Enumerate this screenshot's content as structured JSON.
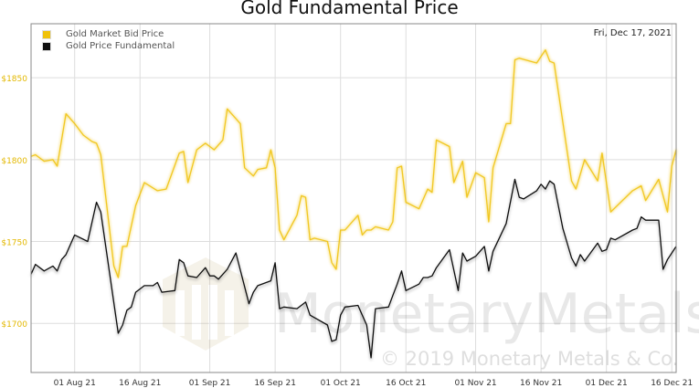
{
  "chart_data": {
    "type": "line",
    "title": "Gold Fundamental Price",
    "date_label": "Fri, Dec 17, 2021",
    "watermark": "MonetaryMetals",
    "copyright": "© 2019 Monetary Metals & Co.",
    "xlim": [
      "2021-07-22",
      "2021-12-17"
    ],
    "ylim": [
      1670,
      1883
    ],
    "grid": true,
    "legend_placement": "top-left",
    "yticks": [
      {
        "value": 1700,
        "label": "$1700"
      },
      {
        "value": 1750,
        "label": "$1750"
      },
      {
        "value": 1800,
        "label": "$1800"
      },
      {
        "value": 1850,
        "label": "$1850"
      }
    ],
    "xticks": [
      {
        "date": "2021-08-01",
        "label": "01 Aug 21"
      },
      {
        "date": "2021-08-16",
        "label": "16 Aug 21"
      },
      {
        "date": "2021-09-01",
        "label": "01 Sep 21"
      },
      {
        "date": "2021-09-16",
        "label": "16 Sep 21"
      },
      {
        "date": "2021-10-01",
        "label": "01 Oct 21"
      },
      {
        "date": "2021-10-16",
        "label": "16 Oct 21"
      },
      {
        "date": "2021-11-01",
        "label": "01 Nov 21"
      },
      {
        "date": "2021-11-16",
        "label": "16 Nov 21"
      },
      {
        "date": "2021-12-01",
        "label": "01 Dec 21"
      },
      {
        "date": "2021-12-16",
        "label": "16 Dec 21"
      }
    ],
    "series": [
      {
        "name": "Gold Market Bid Price",
        "color": "#f0c20a",
        "points": [
          [
            "2021-07-22",
            1802
          ],
          [
            "2021-07-23",
            1803
          ],
          [
            "2021-07-25",
            1799
          ],
          [
            "2021-07-27",
            1800
          ],
          [
            "2021-07-28",
            1796
          ],
          [
            "2021-07-30",
            1828
          ],
          [
            "2021-08-01",
            1822
          ],
          [
            "2021-08-03",
            1815
          ],
          [
            "2021-08-05",
            1811
          ],
          [
            "2021-08-06",
            1810
          ],
          [
            "2021-08-07",
            1803
          ],
          [
            "2021-08-10",
            1735
          ],
          [
            "2021-08-11",
            1728
          ],
          [
            "2021-08-12",
            1747
          ],
          [
            "2021-08-13",
            1747
          ],
          [
            "2021-08-15",
            1772
          ],
          [
            "2021-08-17",
            1786
          ],
          [
            "2021-08-20",
            1781
          ],
          [
            "2021-08-22",
            1782
          ],
          [
            "2021-08-25",
            1804
          ],
          [
            "2021-08-26",
            1805
          ],
          [
            "2021-08-27",
            1786
          ],
          [
            "2021-08-29",
            1806
          ],
          [
            "2021-08-31",
            1810
          ],
          [
            "2021-09-02",
            1806
          ],
          [
            "2021-09-04",
            1812
          ],
          [
            "2021-09-05",
            1831
          ],
          [
            "2021-09-08",
            1822
          ],
          [
            "2021-09-09",
            1795
          ],
          [
            "2021-09-11",
            1790
          ],
          [
            "2021-09-12",
            1794
          ],
          [
            "2021-09-14",
            1795
          ],
          [
            "2021-09-15",
            1806
          ],
          [
            "2021-09-16",
            1795
          ],
          [
            "2021-09-17",
            1757
          ],
          [
            "2021-09-18",
            1751
          ],
          [
            "2021-09-21",
            1766
          ],
          [
            "2021-09-22",
            1778
          ],
          [
            "2021-09-23",
            1777
          ],
          [
            "2021-09-24",
            1751
          ],
          [
            "2021-09-25",
            1752
          ],
          [
            "2021-09-28",
            1750
          ],
          [
            "2021-09-29",
            1737
          ],
          [
            "2021-09-30",
            1733
          ],
          [
            "2021-10-01",
            1757
          ],
          [
            "2021-10-02",
            1757
          ],
          [
            "2021-10-05",
            1766
          ],
          [
            "2021-10-06",
            1754
          ],
          [
            "2021-10-07",
            1757
          ],
          [
            "2021-10-08",
            1757
          ],
          [
            "2021-10-09",
            1759
          ],
          [
            "2021-10-12",
            1757
          ],
          [
            "2021-10-13",
            1762
          ],
          [
            "2021-10-14",
            1795
          ],
          [
            "2021-10-15",
            1796
          ],
          [
            "2021-10-16",
            1774
          ],
          [
            "2021-10-19",
            1770
          ],
          [
            "2021-10-21",
            1782
          ],
          [
            "2021-10-22",
            1780
          ],
          [
            "2021-10-23",
            1812
          ],
          [
            "2021-10-26",
            1808
          ],
          [
            "2021-10-27",
            1786
          ],
          [
            "2021-10-29",
            1799
          ],
          [
            "2021-10-30",
            1777
          ],
          [
            "2021-11-01",
            1792
          ],
          [
            "2021-11-03",
            1789
          ],
          [
            "2021-11-04",
            1762
          ],
          [
            "2021-11-05",
            1795
          ],
          [
            "2021-11-08",
            1822
          ],
          [
            "2021-11-09",
            1822
          ],
          [
            "2021-11-10",
            1861
          ],
          [
            "2021-11-11",
            1862
          ],
          [
            "2021-11-15",
            1859
          ],
          [
            "2021-11-16",
            1863
          ],
          [
            "2021-11-17",
            1867
          ],
          [
            "2021-11-18",
            1860
          ],
          [
            "2021-11-19",
            1859
          ],
          [
            "2021-11-23",
            1787
          ],
          [
            "2021-11-24",
            1782
          ],
          [
            "2021-11-26",
            1800
          ],
          [
            "2021-11-29",
            1787
          ],
          [
            "2021-11-30",
            1804
          ],
          [
            "2021-12-02",
            1768
          ],
          [
            "2021-12-07",
            1781
          ],
          [
            "2021-12-09",
            1784
          ],
          [
            "2021-12-10",
            1775
          ],
          [
            "2021-12-13",
            1788
          ],
          [
            "2021-12-15",
            1768
          ],
          [
            "2021-12-16",
            1796
          ],
          [
            "2021-12-17",
            1806
          ]
        ]
      },
      {
        "name": "Gold Price Fundamental",
        "color": "#111111",
        "points": [
          [
            "2021-07-22",
            1730
          ],
          [
            "2021-07-23",
            1736
          ],
          [
            "2021-07-25",
            1732
          ],
          [
            "2021-07-27",
            1735
          ],
          [
            "2021-07-28",
            1732
          ],
          [
            "2021-07-29",
            1739
          ],
          [
            "2021-07-30",
            1742
          ],
          [
            "2021-08-01",
            1754
          ],
          [
            "2021-08-04",
            1750
          ],
          [
            "2021-08-06",
            1774
          ],
          [
            "2021-08-07",
            1768
          ],
          [
            "2021-08-11",
            1694
          ],
          [
            "2021-08-12",
            1699
          ],
          [
            "2021-08-13",
            1708
          ],
          [
            "2021-08-14",
            1710
          ],
          [
            "2021-08-15",
            1719
          ],
          [
            "2021-08-17",
            1723
          ],
          [
            "2021-08-19",
            1723
          ],
          [
            "2021-08-20",
            1725
          ],
          [
            "2021-08-21",
            1719
          ],
          [
            "2021-08-24",
            1720
          ],
          [
            "2021-08-25",
            1739
          ],
          [
            "2021-08-26",
            1737
          ],
          [
            "2021-08-27",
            1729
          ],
          [
            "2021-08-29",
            1728
          ],
          [
            "2021-08-31",
            1734
          ],
          [
            "2021-09-01",
            1729
          ],
          [
            "2021-09-02",
            1729
          ],
          [
            "2021-09-03",
            1727
          ],
          [
            "2021-09-05",
            1733
          ],
          [
            "2021-09-07",
            1743
          ],
          [
            "2021-09-10",
            1712
          ],
          [
            "2021-09-11",
            1719
          ],
          [
            "2021-09-12",
            1723
          ],
          [
            "2021-09-15",
            1726
          ],
          [
            "2021-09-16",
            1737
          ],
          [
            "2021-09-17",
            1709
          ],
          [
            "2021-09-18",
            1710
          ],
          [
            "2021-09-21",
            1709
          ],
          [
            "2021-09-23",
            1713
          ],
          [
            "2021-09-24",
            1705
          ],
          [
            "2021-09-28",
            1699
          ],
          [
            "2021-09-29",
            1689
          ],
          [
            "2021-09-30",
            1690
          ],
          [
            "2021-10-01",
            1705
          ],
          [
            "2021-10-02",
            1710
          ],
          [
            "2021-10-05",
            1711
          ],
          [
            "2021-10-06",
            1705
          ],
          [
            "2021-10-07",
            1699
          ],
          [
            "2021-10-08",
            1679
          ],
          [
            "2021-10-09",
            1709
          ],
          [
            "2021-10-12",
            1710
          ],
          [
            "2021-10-13",
            1717
          ],
          [
            "2021-10-14",
            1724
          ],
          [
            "2021-10-15",
            1732
          ],
          [
            "2021-10-16",
            1720
          ],
          [
            "2021-10-19",
            1724
          ],
          [
            "2021-10-20",
            1728
          ],
          [
            "2021-10-21",
            1728
          ],
          [
            "2021-10-22",
            1729
          ],
          [
            "2021-10-23",
            1734
          ],
          [
            "2021-10-26",
            1745
          ],
          [
            "2021-10-28",
            1720
          ],
          [
            "2021-10-29",
            1743
          ],
          [
            "2021-10-30",
            1738
          ],
          [
            "2021-11-01",
            1741
          ],
          [
            "2021-11-03",
            1747
          ],
          [
            "2021-11-04",
            1732
          ],
          [
            "2021-11-05",
            1744
          ],
          [
            "2021-11-08",
            1761
          ],
          [
            "2021-11-10",
            1788
          ],
          [
            "2021-11-11",
            1777
          ],
          [
            "2021-11-12",
            1776
          ],
          [
            "2021-11-15",
            1781
          ],
          [
            "2021-11-16",
            1785
          ],
          [
            "2021-11-17",
            1782
          ],
          [
            "2021-11-18",
            1787
          ],
          [
            "2021-11-19",
            1785
          ],
          [
            "2021-11-21",
            1758
          ],
          [
            "2021-11-23",
            1740
          ],
          [
            "2021-11-24",
            1735
          ],
          [
            "2021-11-25",
            1742
          ],
          [
            "2021-11-26",
            1738
          ],
          [
            "2021-11-29",
            1749
          ],
          [
            "2021-11-30",
            1744
          ],
          [
            "2021-12-01",
            1745
          ],
          [
            "2021-12-02",
            1752
          ],
          [
            "2021-12-03",
            1751
          ],
          [
            "2021-12-07",
            1757
          ],
          [
            "2021-12-08",
            1758
          ],
          [
            "2021-12-09",
            1765
          ],
          [
            "2021-12-10",
            1763
          ],
          [
            "2021-12-13",
            1763
          ],
          [
            "2021-12-14",
            1733
          ],
          [
            "2021-12-15",
            1739
          ],
          [
            "2021-12-17",
            1747
          ]
        ]
      }
    ]
  }
}
